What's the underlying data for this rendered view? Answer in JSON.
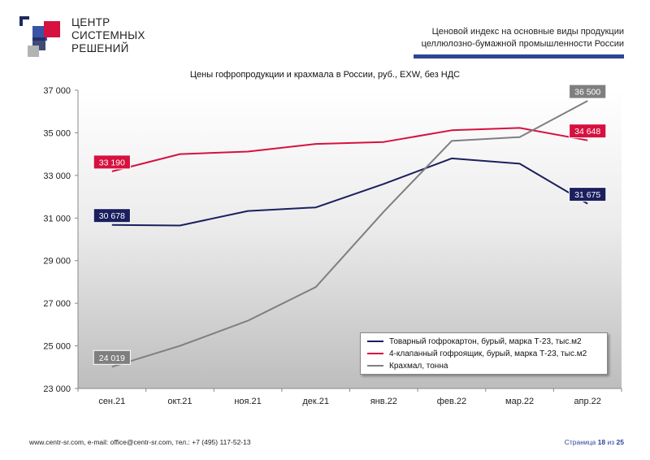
{
  "logo": {
    "line1": "ЦЕНТР",
    "line2": "СИСТЕМНЫХ",
    "line3": "РЕШЕНИЙ"
  },
  "header": {
    "line1": "Ценовой индекс на основные виды продукции",
    "line2": "целлюлозно-бумажной промышленности России"
  },
  "footer": {
    "contacts": "www.centr-sr.com, e-mail: office@centr-sr.com, тел.: +7 (495) 117-52-13",
    "page_label": "Страница",
    "page_number": "18",
    "page_of": "из",
    "page_total": "25"
  },
  "chart_data": {
    "type": "line",
    "title": "Цены гофропродукции и крахмала в России, руб., EXW, без НДС",
    "categories": [
      "сен.21",
      "окт.21",
      "ноя.21",
      "дек.21",
      "янв.22",
      "фев.22",
      "мар.22",
      "апр.22"
    ],
    "ylim": [
      23000,
      37000
    ],
    "yticks": [
      23000,
      25000,
      27000,
      29000,
      31000,
      33000,
      35000,
      37000
    ],
    "ytick_labels": [
      "23 000",
      "25 000",
      "27 000",
      "29 000",
      "31 000",
      "33 000",
      "35 000",
      "37 000"
    ],
    "grid": false,
    "legend_position": "bottom-right",
    "series": [
      {
        "name": "Товарный гофрокартон, бурый, марка Т-23, тыс.м2",
        "color": "#1b1f5e",
        "values": [
          30678,
          30650,
          31330,
          31500,
          32600,
          33800,
          33550,
          31675
        ],
        "labels": {
          "0": "30 678",
          "7": "31 675"
        }
      },
      {
        "name": "4-клапанный гофроящик, бурый, марка Т-23, тыс.м2",
        "color": "#d6113f",
        "values": [
          33190,
          34000,
          34120,
          34480,
          34570,
          35120,
          35230,
          34648
        ],
        "labels": {
          "0": "33 190",
          "7": "34 648"
        }
      },
      {
        "name": "Крахмал, тонна",
        "color": "#7f7f7f",
        "values": [
          24019,
          25000,
          26180,
          27760,
          31300,
          34620,
          34800,
          36500
        ],
        "labels": {
          "0": "24 019",
          "7": "36 500"
        }
      }
    ]
  }
}
